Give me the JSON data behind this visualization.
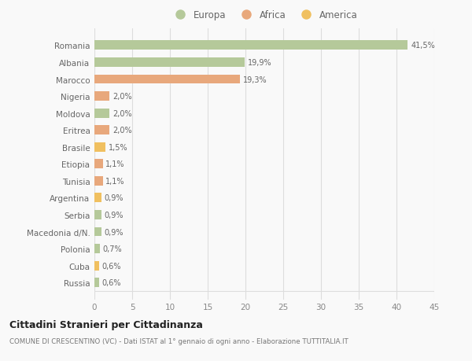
{
  "countries": [
    "Romania",
    "Albania",
    "Marocco",
    "Nigeria",
    "Moldova",
    "Eritrea",
    "Brasile",
    "Etiopia",
    "Tunisia",
    "Argentina",
    "Serbia",
    "Macedonia d/N.",
    "Polonia",
    "Cuba",
    "Russia"
  ],
  "values": [
    41.5,
    19.9,
    19.3,
    2.0,
    2.0,
    2.0,
    1.5,
    1.1,
    1.1,
    0.9,
    0.9,
    0.9,
    0.7,
    0.6,
    0.6
  ],
  "labels": [
    "41,5%",
    "19,9%",
    "19,3%",
    "2,0%",
    "2,0%",
    "2,0%",
    "1,5%",
    "1,1%",
    "1,1%",
    "0,9%",
    "0,9%",
    "0,9%",
    "0,7%",
    "0,6%",
    "0,6%"
  ],
  "colors": [
    "#b5c99a",
    "#b5c99a",
    "#e8a87c",
    "#e8a87c",
    "#b5c99a",
    "#e8a87c",
    "#f0c060",
    "#e8a87c",
    "#e8a87c",
    "#f0c060",
    "#b5c99a",
    "#b5c99a",
    "#b5c99a",
    "#f0c060",
    "#b5c99a"
  ],
  "legend_labels": [
    "Europa",
    "Africa",
    "America"
  ],
  "legend_colors": [
    "#b5c99a",
    "#e8a87c",
    "#f0c060"
  ],
  "title": "Cittadini Stranieri per Cittadinanza",
  "subtitle": "COMUNE DI CRESCENTINO (VC) - Dati ISTAT al 1° gennaio di ogni anno - Elaborazione TUTTITALIA.IT",
  "xlim": [
    0,
    45
  ],
  "xticks": [
    0,
    5,
    10,
    15,
    20,
    25,
    30,
    35,
    40,
    45
  ],
  "background_color": "#f9f9f9",
  "grid_color": "#dddddd",
  "bar_height": 0.55
}
